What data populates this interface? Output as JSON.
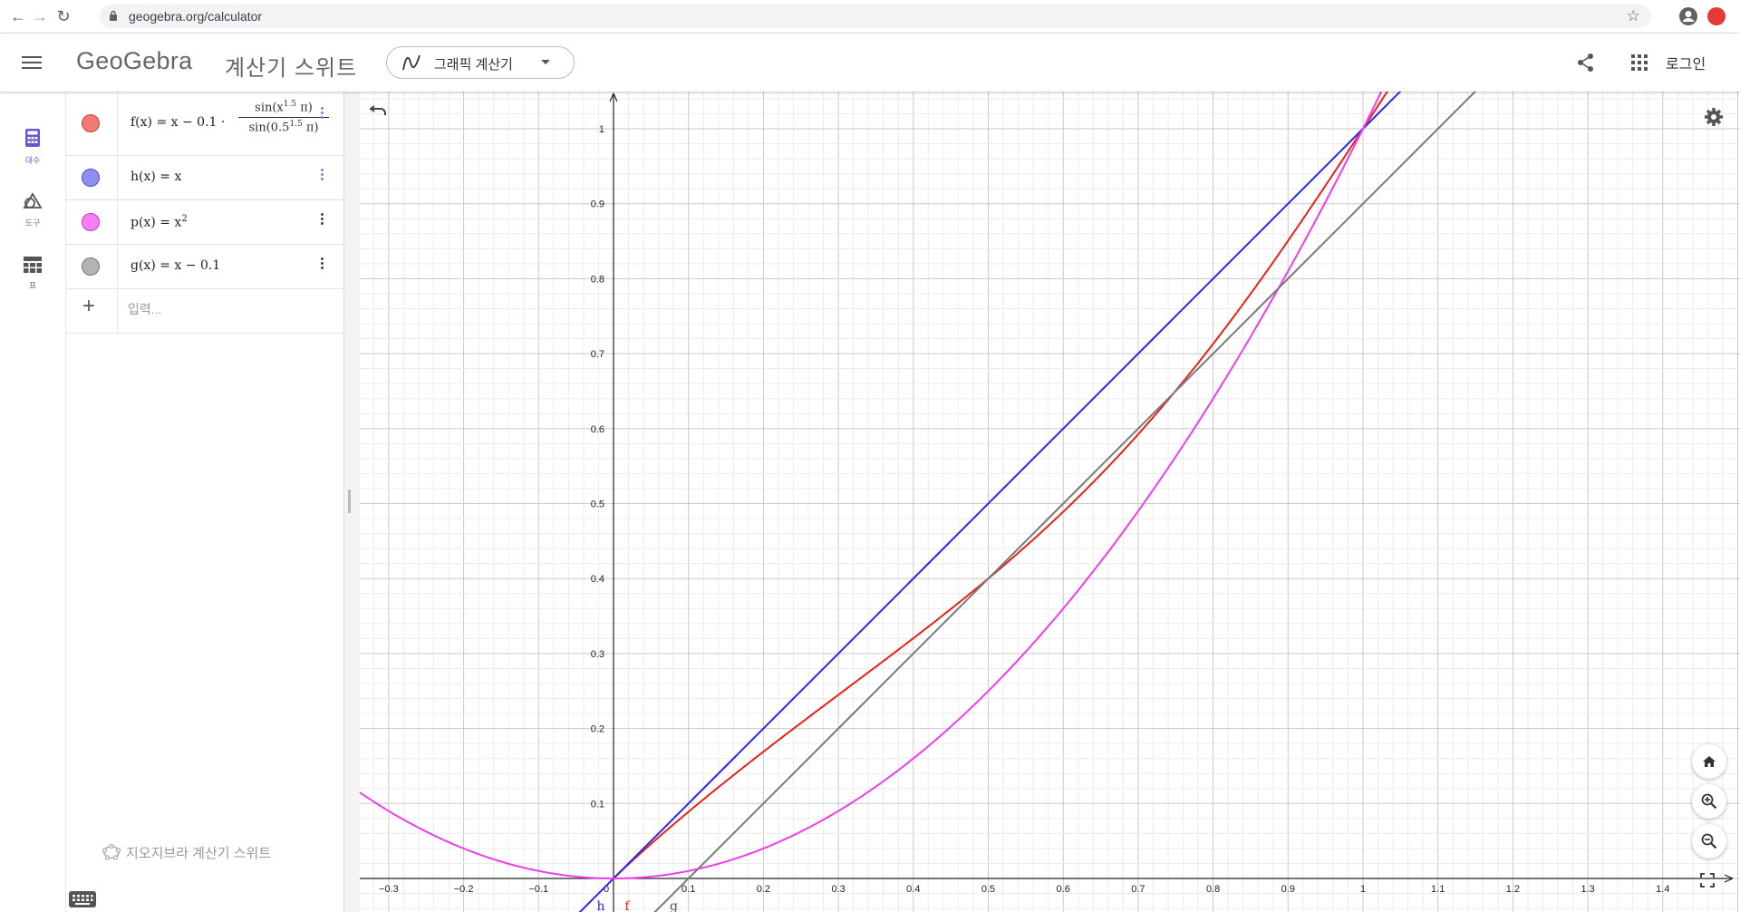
{
  "browser": {
    "url": "geogebra.org/calculator"
  },
  "header": {
    "brand": "GeoGebra",
    "suite_title": "계산기 스위트",
    "app_switcher_label": "그래픽 계산기",
    "login_label": "로그인"
  },
  "rail": {
    "items": [
      {
        "label": "대수",
        "icon": "calculator-icon"
      },
      {
        "label": "도구",
        "icon": "shapes-icon"
      },
      {
        "label": "표",
        "icon": "table-icon"
      }
    ]
  },
  "algebra": {
    "items": [
      {
        "name": "f",
        "color": "#e8534a"
      },
      {
        "name": "h",
        "text": "h(x) = x",
        "color": "#6b6cf0"
      },
      {
        "name": "p",
        "color": "#f24cf2"
      },
      {
        "name": "g",
        "text": "g(x) = x − 0.1",
        "color": "#999999"
      }
    ],
    "f_lhs": "f(x) = x − 0.1 · ",
    "f_num": "sin(x",
    "f_num_exp": "1.5",
    "f_num_tail": " π)",
    "f_den": "sin(0.5",
    "f_den_exp": "1.5",
    "f_den_tail": " π)",
    "p_base": "p(x) = x",
    "p_exp": "2",
    "input_placeholder": "입력...",
    "footer": "지오지브라 계산기 스위트"
  },
  "chart_data": {
    "type": "line",
    "xlim": [
      -0.34,
      1.47
    ],
    "ylim": [
      -0.045,
      1.06
    ],
    "x_ticks": [
      "-0.3",
      "-0.2",
      "-0.1",
      "0",
      "0.1",
      "0.2",
      "0.3",
      "0.4",
      "0.5",
      "0.6",
      "0.7",
      "0.8",
      "0.9",
      "1",
      "1.1",
      "1.2",
      "1.3",
      "1.4"
    ],
    "y_ticks": [
      "0.1",
      "0.2",
      "0.3",
      "0.4",
      "0.5",
      "0.6",
      "0.7",
      "0.8",
      "0.9",
      "1"
    ],
    "grid": true,
    "series": [
      {
        "name": "f",
        "color": "#e8221a",
        "formula": "x - 0.1*sin(x^1.5*pi)/sin(0.5^1.5*pi)",
        "domain": [
          0,
          1.5
        ]
      },
      {
        "name": "h",
        "color": "#2b26e8",
        "formula": "x"
      },
      {
        "name": "p",
        "color": "#f03cf0",
        "formula": "x^2"
      },
      {
        "name": "g",
        "color": "#7a7a7a",
        "formula": "x - 0.1"
      }
    ]
  }
}
